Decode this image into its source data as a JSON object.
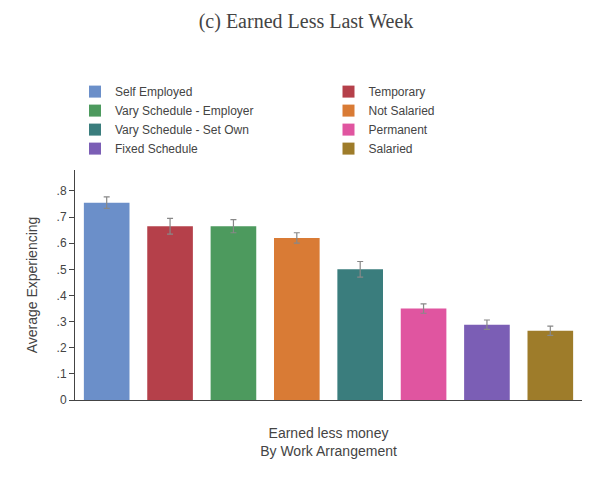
{
  "chart_data": {
    "type": "bar",
    "title": "(c) Earned Less Last Week",
    "xlabel": "Earned less money\nBy Work Arrangement",
    "ylabel": "Average Experiencing",
    "categories": [
      "Self Employed",
      "Temporary",
      "Vary Schedule - Employer",
      "Not Salaried",
      "Vary Schedule - Set Own",
      "Permanent",
      "Fixed Schedule",
      "Salaried"
    ],
    "values": [
      0.755,
      0.665,
      0.665,
      0.62,
      0.5,
      0.35,
      0.288,
      0.265
    ],
    "errors": [
      0.022,
      0.03,
      0.025,
      0.02,
      0.03,
      0.018,
      0.018,
      0.018
    ],
    "colors": [
      "#6b8fc9",
      "#b5404a",
      "#4d9a5e",
      "#d97b35",
      "#3a7d7d",
      "#e055a0",
      "#7b5eb5",
      "#9e7c2a"
    ],
    "ylim": [
      0,
      0.88
    ],
    "yticks": [
      0,
      {
        "value": 0.1,
        "label": ".1"
      },
      {
        "value": 0.2,
        "label": ".2"
      },
      {
        "value": 0.3,
        "label": ".3"
      },
      {
        "value": 0.4,
        "label": ".4"
      },
      {
        "value": 0.5,
        "label": ".5"
      },
      {
        "value": 0.6,
        "label": ".6"
      },
      {
        "value": 0.7,
        "label": ".7"
      },
      {
        "value": 0.8,
        "label": ".8"
      }
    ],
    "tick_labels": "y",
    "legend": "top",
    "grid": false
  }
}
